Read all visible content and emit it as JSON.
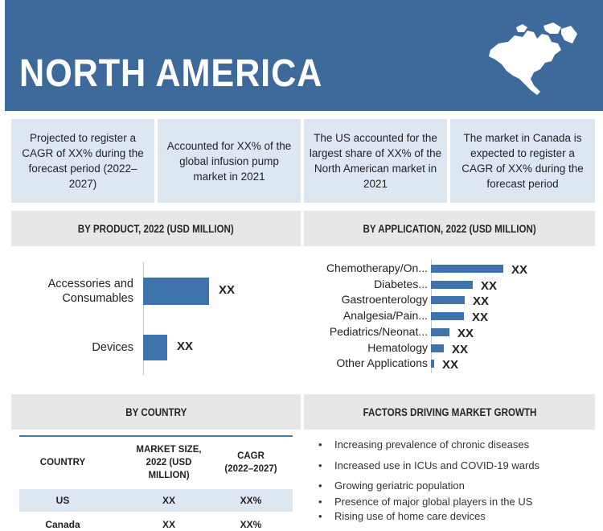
{
  "header": {
    "title": "NORTH AMERICA"
  },
  "highlights": [
    "Projected to register a CAGR of XX% during the forecast period (2022–2027)",
    "Accounted for XX% of the global infusion pump market in 2021",
    "The US accounted for the largest share of XX% of the North American market in 2021",
    "The market in Canada is expected to register a CAGR of XX% during the forecast period"
  ],
  "sections": {
    "by_product": "BY PRODUCT, 2022 (USD MILLION)",
    "by_application": "BY APPLICATION, 2022 (USD MILLION)",
    "by_country": "BY COUNTRY",
    "factors": "FACTORS DRIVING MARKET GROWTH"
  },
  "chart_data": [
    {
      "type": "bar",
      "orientation": "horizontal",
      "title": "BY PRODUCT, 2022 (USD MILLION)",
      "categories": [
        "Accessories and Consumables",
        "Devices"
      ],
      "category_lines": [
        [
          "Accessories and",
          "Consumables"
        ],
        [
          "Devices"
        ]
      ],
      "values": [
        100,
        36
      ],
      "value_labels": [
        "XX",
        "XX"
      ],
      "color": "#3e73ae"
    },
    {
      "type": "bar",
      "orientation": "horizontal",
      "title": "BY APPLICATION, 2022 (USD MILLION)",
      "categories": [
        "Chemotherapy/On...",
        "Diabetes...",
        "Gastroenterology",
        "Analgesia/Pain...",
        "Pediatrics/Neonat...",
        "Hematology",
        "Other Applications"
      ],
      "values": [
        100,
        58,
        47,
        46,
        26,
        18,
        4
      ],
      "value_labels": [
        "XX",
        "XX",
        "XX",
        "XX",
        "XX",
        "XX",
        "XX"
      ],
      "color": "#3e73ae"
    }
  ],
  "country_table": {
    "headers": [
      "COUNTRY",
      "MARKET SIZE, 2022 (USD MILLION)",
      "CAGR (2022–2027)"
    ],
    "header_lines": [
      [
        "COUNTRY"
      ],
      [
        "MARKET SIZE,",
        "2022 (USD",
        "MILLION)"
      ],
      [
        "CAGR",
        "(2022–2027)"
      ]
    ],
    "rows": [
      [
        "US",
        "XX",
        "XX%"
      ],
      [
        "Canada",
        "XX",
        "XX%"
      ]
    ]
  },
  "factors": [
    "Increasing prevalence of chronic diseases",
    "Increased use in ICUs and COVID-19 wards",
    "Growing geriatric population",
    "Presence of major global players in the US",
    "Rising use of home care devices"
  ],
  "colors": {
    "header": "#3e6a9b",
    "highlight_box": "#dde7f2",
    "bar": "#3e73ae",
    "section_header": "#e7e7e7"
  }
}
